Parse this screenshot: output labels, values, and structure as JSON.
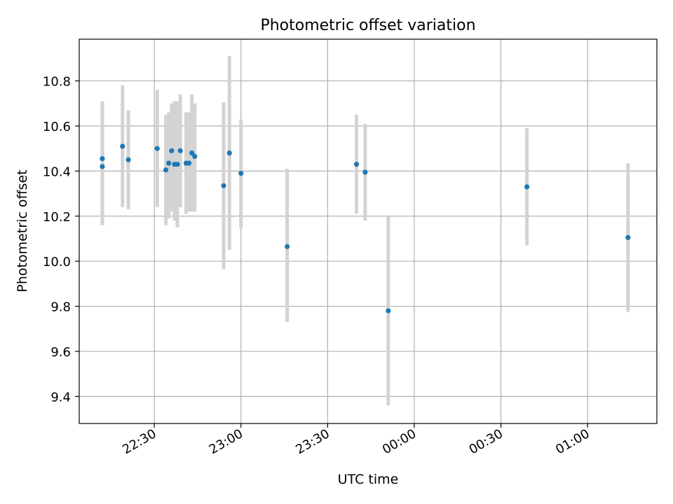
{
  "chart_data": {
    "type": "scatter",
    "title": "Photometric offset variation",
    "xlabel": "UTC time",
    "ylabel": "Photometric offset",
    "x_unit": "time",
    "xlim": [
      "22:04",
      "01:24"
    ],
    "ylim": [
      9.28,
      10.985
    ],
    "xticks": [
      {
        "time": "22:30",
        "label": "22:30"
      },
      {
        "time": "23:00",
        "label": "23:00"
      },
      {
        "time": "23:30",
        "label": "23:30"
      },
      {
        "time": "00:00",
        "label": "00:00"
      },
      {
        "time": "00:30",
        "label": "00:30"
      },
      {
        "time": "01:00",
        "label": "01:00"
      }
    ],
    "yticks": [
      {
        "value": 9.4,
        "label": "9.4"
      },
      {
        "value": 9.6,
        "label": "9.6"
      },
      {
        "value": 9.8,
        "label": "9.8"
      },
      {
        "value": 10.0,
        "label": "10.0"
      },
      {
        "value": 10.2,
        "label": "10.2"
      },
      {
        "value": 10.4,
        "label": "10.4"
      },
      {
        "value": 10.6,
        "label": "10.6"
      },
      {
        "value": 10.8,
        "label": "10.8"
      }
    ],
    "grid": true,
    "colors": {
      "points": "#1f77b4",
      "errorbars": "#d3d3d3",
      "grid": "#b0b0b0"
    },
    "points": [
      {
        "time": "22:12",
        "y": 10.455,
        "ylow": 10.2,
        "yhigh": 10.71
      },
      {
        "time": "22:12",
        "y": 10.42,
        "ylow": 10.16,
        "yhigh": 10.69
      },
      {
        "time": "22:19",
        "y": 10.51,
        "ylow": 10.24,
        "yhigh": 10.78
      },
      {
        "time": "22:21",
        "y": 10.45,
        "ylow": 10.23,
        "yhigh": 10.67
      },
      {
        "time": "22:31",
        "y": 10.5,
        "ylow": 10.24,
        "yhigh": 10.76
      },
      {
        "time": "22:34",
        "y": 10.405,
        "ylow": 10.16,
        "yhigh": 10.65
      },
      {
        "time": "22:35",
        "y": 10.435,
        "ylow": 10.19,
        "yhigh": 10.66
      },
      {
        "time": "22:36",
        "y": 10.49,
        "ylow": 10.22,
        "yhigh": 10.7
      },
      {
        "time": "22:37",
        "y": 10.43,
        "ylow": 10.18,
        "yhigh": 10.71
      },
      {
        "time": "22:38",
        "y": 10.43,
        "ylow": 10.15,
        "yhigh": 10.71
      },
      {
        "time": "22:39",
        "y": 10.49,
        "ylow": 10.24,
        "yhigh": 10.74
      },
      {
        "time": "22:41",
        "y": 10.435,
        "ylow": 10.21,
        "yhigh": 10.66
      },
      {
        "time": "22:42",
        "y": 10.435,
        "ylow": 10.22,
        "yhigh": 10.66
      },
      {
        "time": "22:43",
        "y": 10.48,
        "ylow": 10.22,
        "yhigh": 10.74
      },
      {
        "time": "22:44",
        "y": 10.465,
        "ylow": 10.22,
        "yhigh": 10.7
      },
      {
        "time": "22:54",
        "y": 10.335,
        "ylow": 9.965,
        "yhigh": 10.705
      },
      {
        "time": "22:56",
        "y": 10.48,
        "ylow": 10.05,
        "yhigh": 10.91
      },
      {
        "time": "23:00",
        "y": 10.39,
        "ylow": 10.145,
        "yhigh": 10.63
      },
      {
        "time": "23:16",
        "y": 10.065,
        "ylow": 9.73,
        "yhigh": 10.41
      },
      {
        "time": "23:40",
        "y": 10.43,
        "ylow": 10.21,
        "yhigh": 10.65
      },
      {
        "time": "23:43",
        "y": 10.395,
        "ylow": 10.18,
        "yhigh": 10.61
      },
      {
        "time": "23:51",
        "y": 9.78,
        "ylow": 9.36,
        "yhigh": 10.2
      },
      {
        "time": "00:39",
        "y": 10.33,
        "ylow": 10.07,
        "yhigh": 10.59
      },
      {
        "time": "01:14",
        "y": 10.105,
        "ylow": 9.775,
        "yhigh": 10.435
      }
    ]
  }
}
